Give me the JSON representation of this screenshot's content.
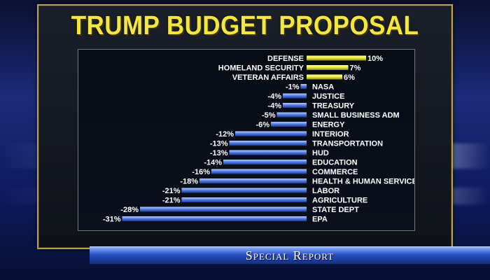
{
  "title": "TRUMP BUDGET PROPOSAL",
  "banner": "Special Report",
  "colors": {
    "title": "#f4e640",
    "increase": "#e8e840",
    "decrease": "#4f7ae0",
    "frame": "#b9a44a"
  },
  "chart_data": {
    "type": "bar",
    "orientation": "horizontal",
    "title": "TRUMP BUDGET PROPOSAL",
    "categories": [
      "DEFENSE",
      "HOMELAND SECURITY",
      "VETERAN AFFAIRS",
      "NASA",
      "JUSTICE",
      "TREASURY",
      "SMALL BUSINESS ADM",
      "ENERGY",
      "INTERIOR",
      "TRANSPORTATION",
      "HUD",
      "EDUCATION",
      "COMMERCE",
      "HEALTH & HUMAN SERVICES",
      "LABOR",
      "AGRICULTURE",
      "STATE DEPT",
      "EPA"
    ],
    "values": [
      10,
      7,
      6,
      -1,
      -4,
      -4,
      -5,
      -6,
      -12,
      -13,
      -13,
      -14,
      -16,
      -18,
      -21,
      -21,
      -28,
      -31
    ],
    "value_labels": [
      "10%",
      "7%",
      "6%",
      "-1%",
      "-4%",
      "-4%",
      "-5%",
      "-6%",
      "-12%",
      "-13%",
      "-13%",
      "-14%",
      "-16%",
      "-18%",
      "-21%",
      "-21%",
      "-28%",
      "-31%"
    ],
    "unit": "%",
    "grid": false,
    "legend": "none"
  }
}
